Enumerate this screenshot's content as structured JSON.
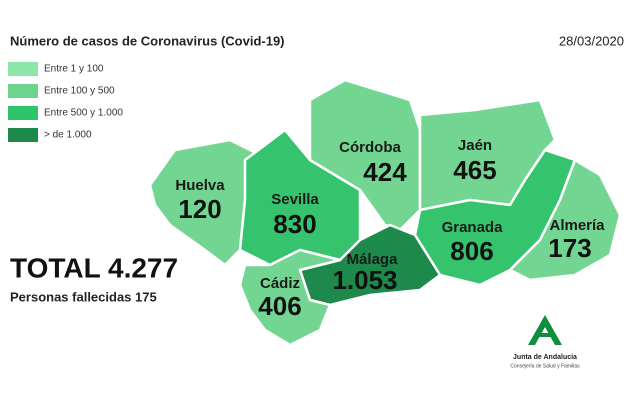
{
  "header": {
    "title": "Número de casos de Coronavirus (Covid-19)",
    "date": "28/03/2020"
  },
  "legend": [
    "Entre 1 y 100",
    "Entre 100 y 500",
    "Entre 500 y 1.000",
    "> de 1.000"
  ],
  "provinces": [
    {
      "name": "Huelva",
      "cases": "120"
    },
    {
      "name": "Sevilla",
      "cases": "830"
    },
    {
      "name": "Córdoba",
      "cases": "424"
    },
    {
      "name": "Jaén",
      "cases": "465"
    },
    {
      "name": "Granada",
      "cases": "806"
    },
    {
      "name": "Almería",
      "cases": "173"
    },
    {
      "name": "Málaga",
      "cases": "1.053"
    },
    {
      "name": "Cádiz",
      "cases": "406"
    }
  ],
  "total": "TOTAL 4.277",
  "deaths": "Personas fallecidas 175",
  "logo": {
    "name": "Junta de Andalucía",
    "department": "Consejería de Salud y Familias"
  }
}
